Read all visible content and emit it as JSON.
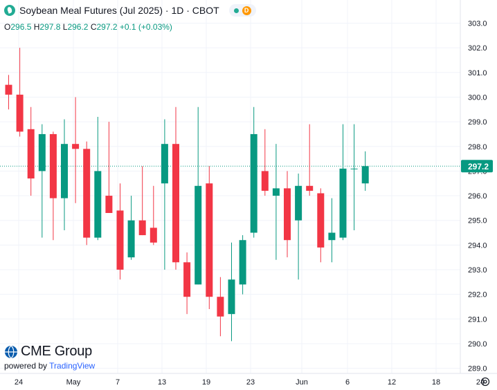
{
  "header": {
    "title": "Soybean Meal Futures (Jul 2025) · 1D · CBOT",
    "badge_letter": "D"
  },
  "ohlc": {
    "o_label": "O",
    "o_value": "296.5",
    "h_label": "H",
    "h_value": "297.8",
    "l_label": "L",
    "l_value": "296.2",
    "c_label": "C",
    "c_value": "297.2",
    "change": "+0.1 (+0.03%)"
  },
  "brand": {
    "name": "CME Group",
    "powered_prefix": "powered by",
    "powered_name": "TradingView"
  },
  "colors": {
    "up": "#089981",
    "down": "#f23645",
    "price_tag": "#089981"
  },
  "chart_data": {
    "type": "candlestick",
    "y_ticks": [
      "303.0",
      "302.0",
      "301.0",
      "300.0",
      "299.0",
      "298.0",
      "297.0",
      "296.0",
      "295.0",
      "294.0",
      "293.0",
      "292.0",
      "291.0",
      "290.0",
      "289.0"
    ],
    "ylim": [
      288.7,
      303.2
    ],
    "x_ticks": [
      "24",
      "May",
      "7",
      "13",
      "19",
      "23",
      "Jun",
      "6",
      "12",
      "18",
      "24"
    ],
    "last_price": "297.2",
    "candles": [
      {
        "o": 300.5,
        "h": 300.9,
        "l": 299.5,
        "c": 300.1
      },
      {
        "o": 300.1,
        "h": 302.0,
        "l": 298.4,
        "c": 298.6
      },
      {
        "o": 298.7,
        "h": 299.6,
        "l": 296.0,
        "c": 296.7
      },
      {
        "o": 297.0,
        "h": 298.9,
        "l": 294.3,
        "c": 298.5
      },
      {
        "o": 298.5,
        "h": 298.6,
        "l": 294.2,
        "c": 295.9
      },
      {
        "o": 295.9,
        "h": 299.1,
        "l": 294.6,
        "c": 298.1
      },
      {
        "o": 298.1,
        "h": 300.0,
        "l": 295.7,
        "c": 297.9
      },
      {
        "o": 297.9,
        "h": 298.2,
        "l": 294.0,
        "c": 294.3
      },
      {
        "o": 294.3,
        "h": 299.2,
        "l": 294.2,
        "c": 297.0
      },
      {
        "o": 296.0,
        "h": 299.0,
        "l": 295.3,
        "c": 295.3
      },
      {
        "o": 295.4,
        "h": 296.5,
        "l": 292.6,
        "c": 293.0
      },
      {
        "o": 293.5,
        "h": 296.0,
        "l": 293.4,
        "c": 295.0
      },
      {
        "o": 295.0,
        "h": 297.2,
        "l": 294.4,
        "c": 294.4
      },
      {
        "o": 294.7,
        "h": 296.4,
        "l": 294.0,
        "c": 294.1
      },
      {
        "o": 296.5,
        "h": 299.1,
        "l": 293.0,
        "c": 298.1
      },
      {
        "o": 298.1,
        "h": 299.6,
        "l": 293.0,
        "c": 293.3
      },
      {
        "o": 293.3,
        "h": 293.7,
        "l": 291.2,
        "c": 291.9
      },
      {
        "o": 292.4,
        "h": 299.6,
        "l": 292.4,
        "c": 296.4
      },
      {
        "o": 296.5,
        "h": 297.2,
        "l": 291.4,
        "c": 291.9
      },
      {
        "o": 291.9,
        "h": 292.7,
        "l": 290.3,
        "c": 291.1
      },
      {
        "o": 291.2,
        "h": 294.1,
        "l": 290.1,
        "c": 292.6
      },
      {
        "o": 292.4,
        "h": 294.4,
        "l": 292.0,
        "c": 294.2
      },
      {
        "o": 294.5,
        "h": 299.6,
        "l": 294.3,
        "c": 298.5
      },
      {
        "o": 297.0,
        "h": 298.7,
        "l": 296.0,
        "c": 296.2
      },
      {
        "o": 296.0,
        "h": 298.1,
        "l": 293.4,
        "c": 296.3
      },
      {
        "o": 296.3,
        "h": 297.0,
        "l": 293.5,
        "c": 294.2
      },
      {
        "o": 295.0,
        "h": 296.9,
        "l": 292.6,
        "c": 296.4
      },
      {
        "o": 296.4,
        "h": 298.9,
        "l": 296.0,
        "c": 296.2
      },
      {
        "o": 296.1,
        "h": 296.3,
        "l": 293.3,
        "c": 293.9
      },
      {
        "o": 294.2,
        "h": 295.9,
        "l": 293.3,
        "c": 294.5
      },
      {
        "o": 294.3,
        "h": 298.9,
        "l": 294.2,
        "c": 297.1
      },
      {
        "o": 297.1,
        "h": 298.9,
        "l": 294.6,
        "c": 297.1
      },
      {
        "o": 296.5,
        "h": 297.8,
        "l": 296.2,
        "c": 297.2
      }
    ]
  }
}
